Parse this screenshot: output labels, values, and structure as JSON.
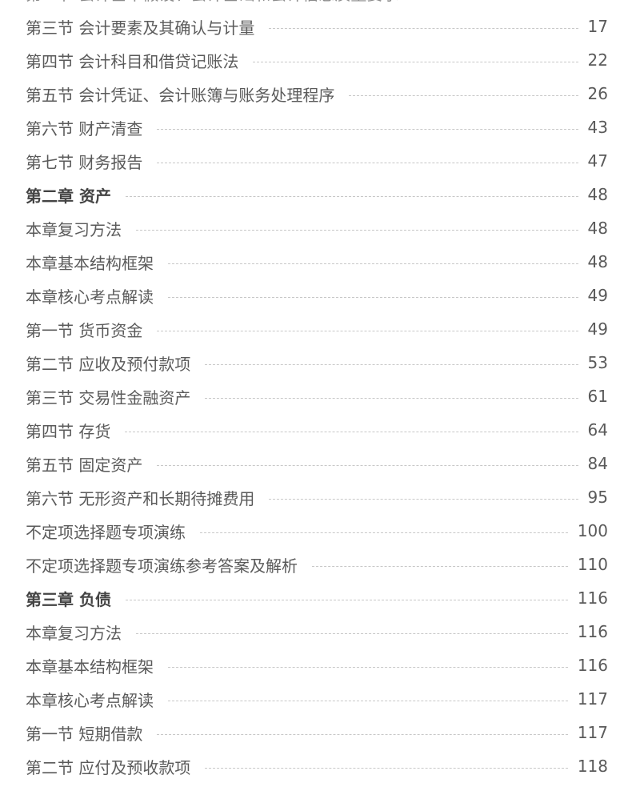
{
  "toc": [
    {
      "title": "第二节 会计基本假设、会计基础和会计信息质量要求",
      "page": "",
      "bold": false
    },
    {
      "title": "第三节 会计要素及其确认与计量",
      "page": "17",
      "bold": false
    },
    {
      "title": "第四节 会计科目和借贷记账法",
      "page": "22",
      "bold": false
    },
    {
      "title": "第五节 会计凭证、会计账簿与账务处理程序",
      "page": "26",
      "bold": false
    },
    {
      "title": "第六节 财产清查",
      "page": "43",
      "bold": false
    },
    {
      "title": "第七节 财务报告",
      "page": "47",
      "bold": false
    },
    {
      "title": "第二章 资产",
      "page": "48",
      "bold": true
    },
    {
      "title": "本章复习方法",
      "page": "48",
      "bold": false
    },
    {
      "title": "本章基本结构框架",
      "page": "48",
      "bold": false
    },
    {
      "title": "本章核心考点解读",
      "page": "49",
      "bold": false
    },
    {
      "title": "第一节 货币资金",
      "page": "49",
      "bold": false
    },
    {
      "title": "第二节 应收及预付款项",
      "page": "53",
      "bold": false
    },
    {
      "title": "第三节 交易性金融资产",
      "page": "61",
      "bold": false
    },
    {
      "title": "第四节 存货",
      "page": "64",
      "bold": false
    },
    {
      "title": "第五节 固定资产",
      "page": "84",
      "bold": false
    },
    {
      "title": "第六节 无形资产和长期待摊费用",
      "page": "95",
      "bold": false
    },
    {
      "title": "不定项选择题专项演练",
      "page": "100",
      "bold": false
    },
    {
      "title": "不定项选择题专项演练参考答案及解析",
      "page": "110",
      "bold": false
    },
    {
      "title": "第三章 负债",
      "page": "116",
      "bold": true
    },
    {
      "title": "本章复习方法",
      "page": "116",
      "bold": false
    },
    {
      "title": "本章基本结构框架",
      "page": "116",
      "bold": false
    },
    {
      "title": "本章核心考点解读",
      "page": "117",
      "bold": false
    },
    {
      "title": "第一节 短期借款",
      "page": "117",
      "bold": false
    },
    {
      "title": "第二节 应付及预收款项",
      "page": "118",
      "bold": false
    }
  ]
}
